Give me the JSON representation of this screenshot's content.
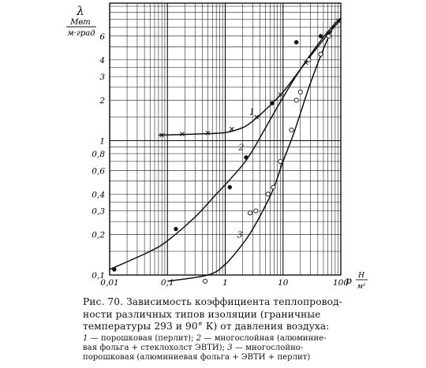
{
  "chart_data": {
    "type": "scatter",
    "x_scale": "log",
    "y_scale": "log",
    "xlim": [
      0.01,
      100
    ],
    "ylim": [
      0.1,
      10
    ],
    "grid": true,
    "ylabel": {
      "symbol": "λ",
      "unit_top": "Мвт",
      "unit_bottom": "м·град"
    },
    "xlabel": {
      "symbol": "p",
      "unit_top": "Н",
      "unit_bottom": "м²"
    },
    "y_tick_labels": [
      {
        "value": 0.1,
        "label": "0,1"
      },
      {
        "value": 0.2,
        "label": "0,2"
      },
      {
        "value": 0.3,
        "label": "0,3"
      },
      {
        "value": 0.4,
        "label": "0,4"
      },
      {
        "value": 0.6,
        "label": "0,6"
      },
      {
        "value": 0.8,
        "label": "0,8"
      },
      {
        "value": 1,
        "label": "1"
      },
      {
        "value": 2,
        "label": "2"
      },
      {
        "value": 3,
        "label": "3"
      },
      {
        "value": 4,
        "label": "4"
      },
      {
        "value": 6,
        "label": "6"
      }
    ],
    "x_tick_labels": [
      {
        "value": 0.01,
        "label": "0,01"
      },
      {
        "value": 0.1,
        "label": "0,1"
      },
      {
        "value": 1,
        "label": "1"
      },
      {
        "value": 10,
        "label": "10"
      },
      {
        "value": 100,
        "label": "100"
      }
    ],
    "series": [
      {
        "name": "1",
        "marker": "x",
        "curve": [
          [
            0.07,
            1.1
          ],
          [
            0.3,
            1.12
          ],
          [
            1,
            1.15
          ],
          [
            2,
            1.25
          ],
          [
            3,
            1.4
          ],
          [
            5,
            1.7
          ],
          [
            10,
            2.3
          ],
          [
            20,
            3.4
          ],
          [
            40,
            5.0
          ],
          [
            70,
            6.7
          ],
          [
            100,
            8.0
          ]
        ],
        "points": [
          [
            0.08,
            1.1
          ],
          [
            0.18,
            1.12
          ],
          [
            0.5,
            1.14
          ],
          [
            1.3,
            1.22
          ],
          [
            3.5,
            1.5
          ],
          [
            9,
            2.2
          ],
          [
            25,
            3.8
          ],
          [
            60,
            6.3
          ],
          [
            90,
            7.8
          ]
        ]
      },
      {
        "name": "2",
        "marker": "filled-circle",
        "curve": [
          [
            0.01,
            0.11
          ],
          [
            0.05,
            0.15
          ],
          [
            0.1,
            0.18
          ],
          [
            0.3,
            0.27
          ],
          [
            0.7,
            0.4
          ],
          [
            1,
            0.47
          ],
          [
            2,
            0.66
          ],
          [
            3,
            0.85
          ],
          [
            5,
            1.25
          ],
          [
            10,
            2.1
          ],
          [
            20,
            3.4
          ],
          [
            40,
            5.2
          ],
          [
            70,
            7.0
          ],
          [
            100,
            8.2
          ]
        ],
        "points": [
          [
            0.012,
            0.11
          ],
          [
            0.14,
            0.22
          ],
          [
            1.2,
            0.45
          ],
          [
            2.3,
            0.75
          ],
          [
            6.5,
            1.9
          ],
          [
            17,
            5.4
          ],
          [
            45,
            6.0
          ]
        ]
      },
      {
        "name": "3",
        "marker": "open-circle",
        "curve": [
          [
            0.1,
            0.09
          ],
          [
            0.5,
            0.1
          ],
          [
            1,
            0.12
          ],
          [
            2,
            0.17
          ],
          [
            3,
            0.22
          ],
          [
            5,
            0.33
          ],
          [
            7,
            0.45
          ],
          [
            10,
            0.7
          ],
          [
            15,
            1.1
          ],
          [
            20,
            1.6
          ],
          [
            30,
            2.7
          ],
          [
            50,
            4.8
          ],
          [
            80,
            7.6
          ]
        ],
        "points": [
          [
            0.45,
            0.09
          ],
          [
            2.7,
            0.29
          ],
          [
            3.4,
            0.3
          ],
          [
            5.5,
            0.4
          ],
          [
            6.8,
            0.45
          ],
          [
            9,
            0.7
          ],
          [
            14,
            1.2
          ],
          [
            17,
            2.0
          ],
          [
            20,
            2.3
          ],
          [
            28,
            4.0
          ],
          [
            45,
            4.4
          ],
          [
            62,
            6.0
          ]
        ]
      }
    ]
  },
  "caption": {
    "fig_label": "Рис. 70.",
    "lines": [
      "Зависимость коэффициента теплопровод-",
      "ности различных типов изоляции (граничные",
      "температуры 293 и 90° К) от давления воздуха:"
    ],
    "legend": [
      {
        "num": "1",
        "text": "— порошковая (перлит);"
      },
      {
        "num": "2",
        "text": "— многослойная (алюминие-"
      },
      {
        "num": "",
        "text": "вая фольга + стеклохолст ЭВТИ);"
      },
      {
        "num": "3",
        "text": "— многослойно-"
      },
      {
        "num": "",
        "text": "порошковая (алюминиевая фольга + ЭВТИ + перлит)"
      }
    ]
  }
}
